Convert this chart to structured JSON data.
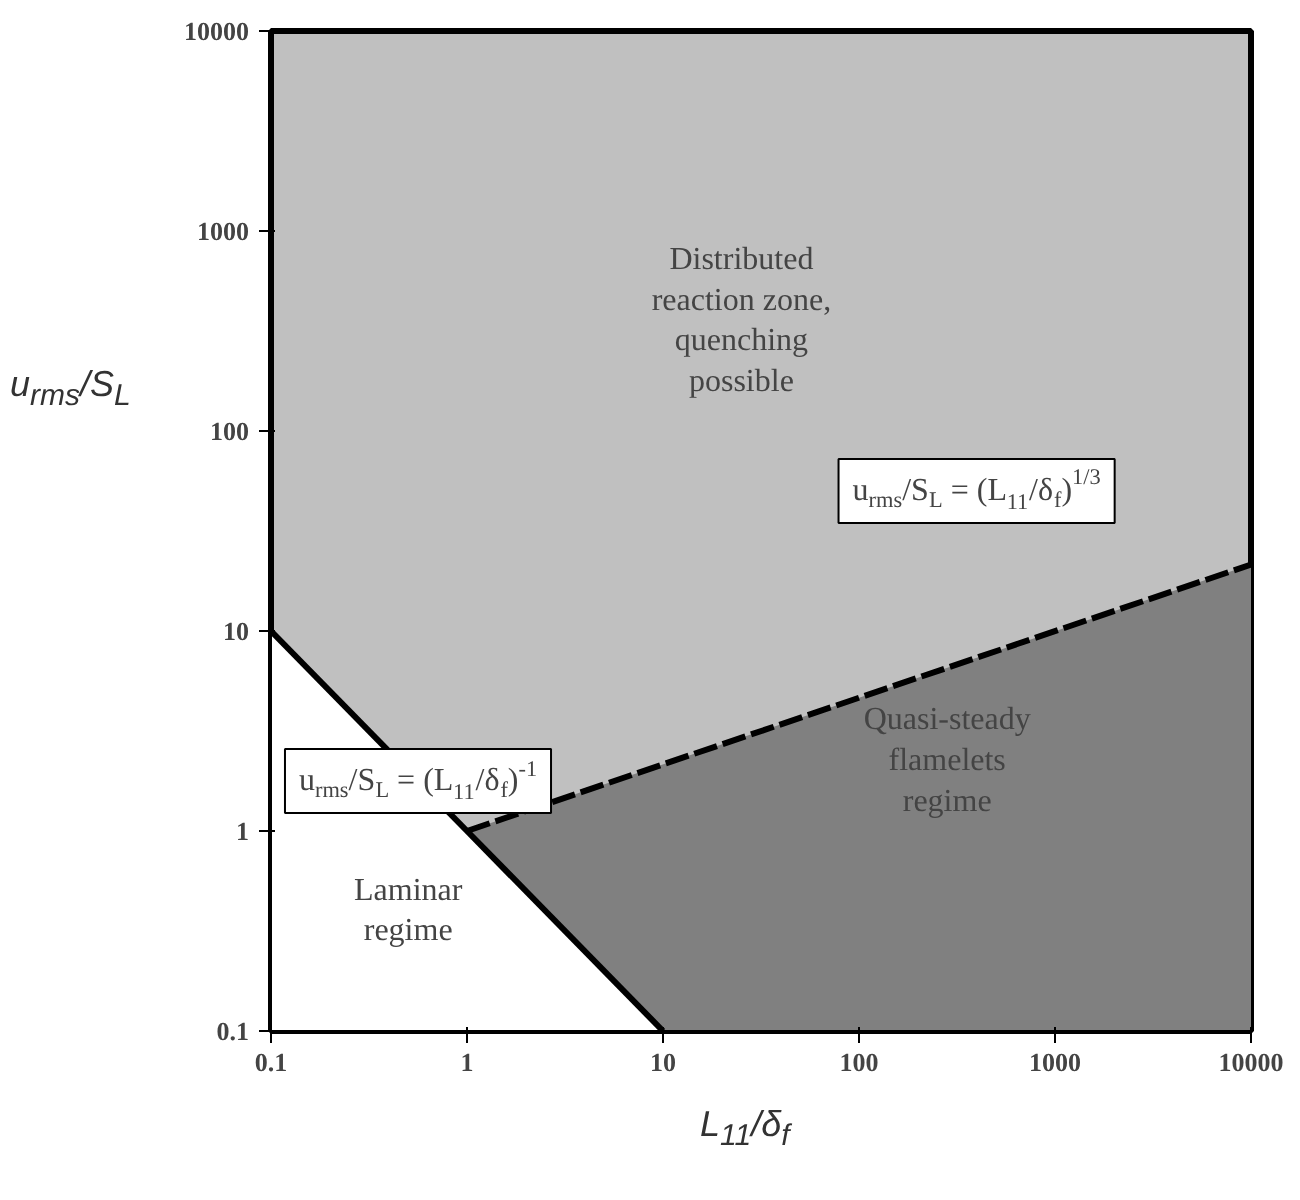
{
  "chart_data": {
    "type": "area",
    "xlabel": "L$_{11}$/δ$_{f}$",
    "ylabel": "u$_{rms}$/S$_{L}$",
    "log": "xy",
    "xlim": [
      0.1,
      10000
    ],
    "ylim": [
      0.1,
      10000
    ],
    "xticks": [
      0.1,
      1,
      10,
      100,
      1000,
      10000
    ],
    "yticks": [
      0.1,
      1,
      10,
      100,
      1000,
      10000
    ],
    "grid": false,
    "series": [
      {
        "color": "#808080",
        "line_style": "dashed",
        "x": [
          1,
          10000
        ],
        "values": [
          1,
          21.5
        ]
      },
      {
        "color": "#ffffff",
        "line_style": "solid",
        "x": [
          0.1,
          1,
          10
        ],
        "values": [
          10,
          1,
          0.1
        ]
      }
    ],
    "annotations": [
      "Distributed\nreaction zone,\nquenching\npossible",
      "Quasi-steady\nflamelets\nregime",
      "Laminar\nregime",
      "u$_{rms}$/S$_{L}$ = (L$_{11}$/δ$_{f}$)$^{-1}$",
      "u$_{rms}$/S$_{L}$ = (L$_{11}$/δ$_{f}$)$^{1/3}$"
    ]
  }
}
